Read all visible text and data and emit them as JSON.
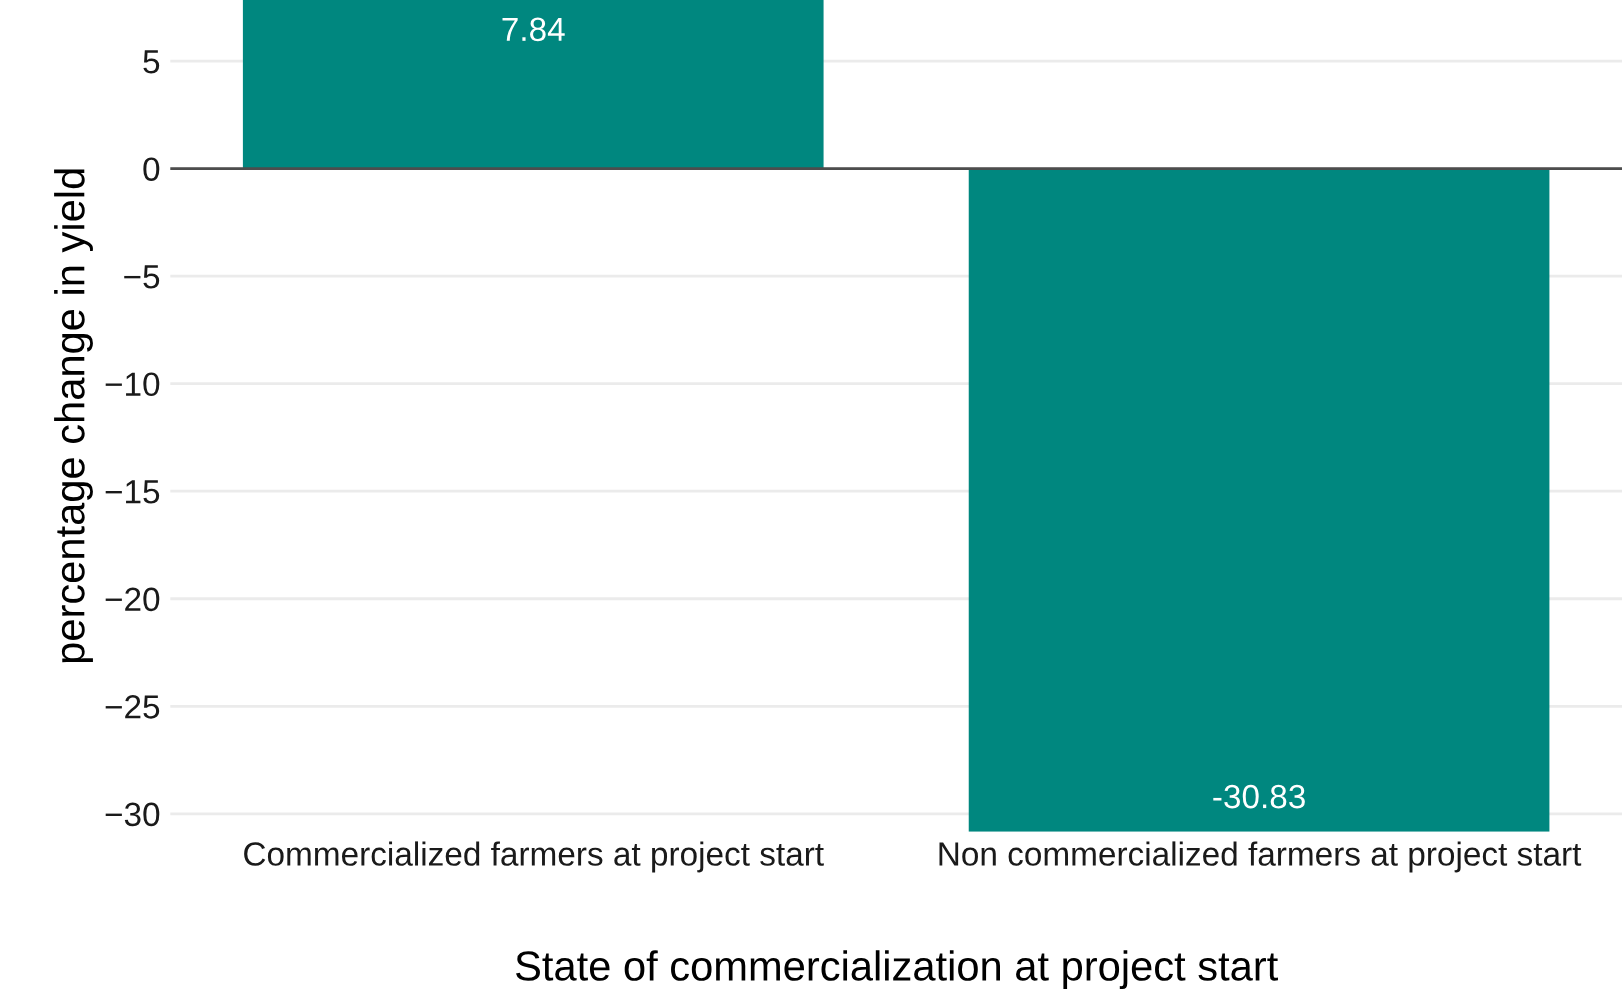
{
  "chart_data": {
    "type": "bar",
    "xlabel": "State of commercialization at project start",
    "ylabel": "percentage change in yield",
    "categories": [
      "Commercialized farmers at project start",
      "Non commercialized farmers at project start"
    ],
    "values": [
      7.84,
      -30.83
    ],
    "color": "#00877f",
    "data_labels": true,
    "ylim": [
      -30.83,
      7.84
    ],
    "yticks": [
      {
        "value": 5,
        "label": "5"
      },
      {
        "value": 0,
        "label": "0"
      },
      {
        "value": -5,
        "label": "−5"
      },
      {
        "value": -10,
        "label": "−10"
      },
      {
        "value": -15,
        "label": "−15"
      },
      {
        "value": -20,
        "label": "−20"
      },
      {
        "value": -25,
        "label": "−25"
      },
      {
        "value": -30,
        "label": "−30"
      }
    ],
    "grid": "y",
    "ref_lines": [
      {
        "axis": "y",
        "value": 0,
        "color": "#4d4d4d"
      }
    ]
  }
}
